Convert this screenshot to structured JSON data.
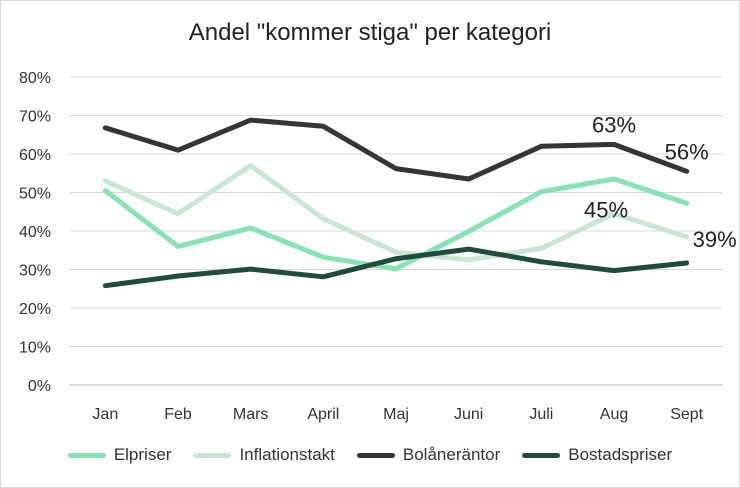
{
  "chart_data": {
    "type": "line",
    "title": "Andel \"kommer stiga\" per kategori",
    "xlabel": "",
    "ylabel": "",
    "categories": [
      "Jan",
      "Feb",
      "Mars",
      "April",
      "Maj",
      "Juni",
      "Juli",
      "Aug",
      "Sept"
    ],
    "ylim": [
      0,
      80
    ],
    "yticks": [
      "0%",
      "10%",
      "20%",
      "30%",
      "40%",
      "50%",
      "60%",
      "70%",
      "80%"
    ],
    "grid": true,
    "legend_position": "bottom",
    "series": [
      {
        "name": "Elpriser",
        "color": "#86e3b2",
        "values": [
          50.5,
          36,
          40.8,
          33.2,
          30.2,
          39.9,
          50.2,
          53.5,
          47.2
        ]
      },
      {
        "name": "Inflationstakt",
        "color": "#c8e6d4",
        "values": [
          53,
          44.5,
          57,
          43.2,
          34.5,
          32.5,
          35.5,
          44.5,
          38.5
        ]
      },
      {
        "name": "Bolåneräntor",
        "color": "#353535",
        "values": [
          66.8,
          61,
          68.8,
          67.2,
          56.2,
          53.5,
          62,
          62.5,
          55.5
        ]
      },
      {
        "name": "Bostadspriser",
        "color": "#1e4d3c",
        "values": [
          25.8,
          28.3,
          30.1,
          28.1,
          32.8,
          35.3,
          32,
          29.7,
          31.7
        ]
      }
    ],
    "annotations": [
      {
        "text": "63%",
        "series": "Bolåneräntor",
        "category": "Aug"
      },
      {
        "text": "56%",
        "series": "Bolåneräntor",
        "category": "Sept"
      },
      {
        "text": "45%",
        "series": "Inflationstakt",
        "category": "Aug"
      },
      {
        "text": "39%",
        "series": "Inflationstakt",
        "category": "Sept"
      }
    ]
  }
}
